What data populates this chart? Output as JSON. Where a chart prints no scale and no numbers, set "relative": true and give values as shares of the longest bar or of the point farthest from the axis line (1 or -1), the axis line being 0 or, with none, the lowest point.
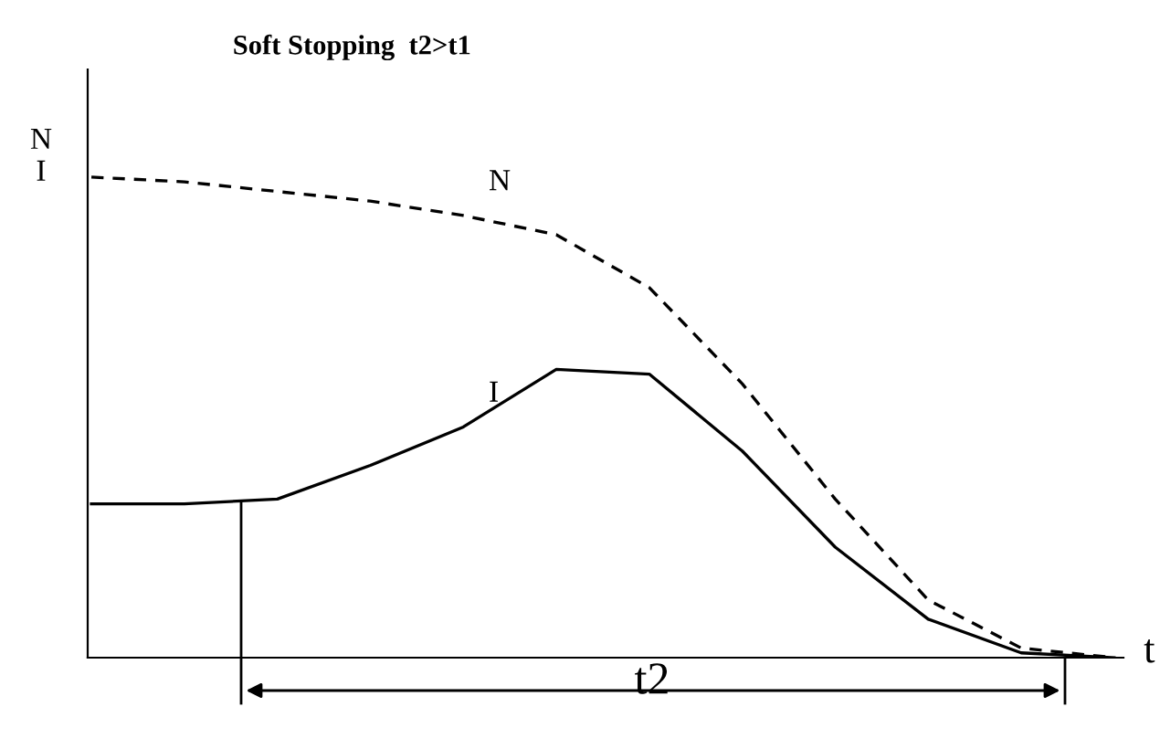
{
  "chart_data": {
    "type": "line",
    "title": "Soft Stopping  t2>t1",
    "xlabel": "t",
    "ylabel": "N\nI",
    "relative": true,
    "categories": [
      null,
      null,
      null,
      null,
      null,
      null,
      null,
      null,
      null,
      null,
      null,
      null
    ],
    "series": [
      {
        "name": "N",
        "color": "#000000",
        "line_style": "dashed",
        "values": [
          1,
          0.99,
          0.97,
          0.95,
          0.92,
          0.88,
          0.77,
          0.57,
          0.33,
          0.12,
          0.02,
          0
        ]
      },
      {
        "name": "I",
        "color": "#000000",
        "line_style": "solid",
        "values": [
          0.32,
          0.32,
          0.33,
          0.4,
          0.48,
          0.6,
          0.59,
          0.43,
          0.23,
          0.08,
          0.01,
          0
        ]
      }
    ],
    "annotations": [
      "t2"
    ],
    "grid": false,
    "legend": false
  }
}
